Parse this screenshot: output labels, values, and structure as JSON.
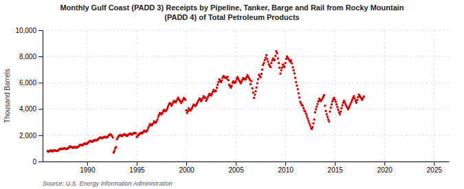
{
  "chart_data": {
    "type": "scatter",
    "title": "Monthly Gulf Coast (PADD 3) Receipts by Pipeline, Tanker, Barge and Rail from Rocky Mountain\n(PADD 4) of Total Petroleum Products",
    "ylabel": "Thousand Barrels",
    "source": "Source: U.S. Energy Information Administration",
    "color": "#cc0000",
    "marker": "square",
    "grid": true,
    "xlim": [
      1985.5,
      2026.5
    ],
    "ylim": [
      0,
      10000
    ],
    "xticks": [
      1990,
      1995,
      2000,
      2005,
      2010,
      2015,
      2020,
      2025
    ],
    "yticks": [
      0,
      {
        "value": 2000,
        "label": "2,000"
      },
      {
        "value": 4000,
        "label": "4,000"
      },
      {
        "value": 6000,
        "label": "6,000"
      },
      {
        "value": 8000,
        "label": "8,000"
      },
      {
        "value": 10000,
        "label": "10,000"
      }
    ],
    "x": [
      1986,
      1986.0833333333333,
      1986.1666666666667,
      1986.25,
      1986.3333333333333,
      1986.4166666666667,
      1986.5,
      1986.5833333333333,
      1986.6666666666667,
      1986.75,
      1986.8333333333333,
      1986.9166666666667,
      1987,
      1987.0833333333333,
      1987.1666666666667,
      1987.25,
      1987.3333333333333,
      1987.4166666666667,
      1987.5,
      1987.5833333333333,
      1987.6666666666667,
      1987.75,
      1987.8333333333333,
      1987.9166666666667,
      1988,
      1988.0833333333333,
      1988.1666666666667,
      1988.25,
      1988.3333333333333,
      1988.4166666666667,
      1988.5,
      1988.5833333333333,
      1988.6666666666667,
      1988.75,
      1988.8333333333333,
      1988.9166666666667,
      1989,
      1989.0833333333333,
      1989.1666666666667,
      1989.25,
      1989.3333333333333,
      1989.4166666666667,
      1989.5,
      1989.5833333333333,
      1989.6666666666667,
      1989.75,
      1989.8333333333333,
      1989.9166666666667,
      1990,
      1990.0833333333333,
      1990.1666666666667,
      1990.25,
      1990.3333333333333,
      1990.4166666666667,
      1990.5,
      1990.5833333333333,
      1990.6666666666667,
      1990.75,
      1990.8333333333333,
      1990.9166666666667,
      1991,
      1991.0833333333333,
      1991.1666666666667,
      1991.25,
      1991.3333333333333,
      1991.4166666666667,
      1991.5,
      1991.5833333333333,
      1991.6666666666667,
      1991.75,
      1991.8333333333333,
      1991.9166666666667,
      1992,
      1992.0833333333333,
      1992.1666666666667,
      1992.25,
      1992.3333333333333,
      1992.4166666666667,
      1992.5,
      1992.5833333333333,
      1992.6666666666667,
      1992.75,
      1992.8333333333333,
      1992.9166666666667,
      1993,
      1993.0833333333333,
      1993.1666666666667,
      1993.25,
      1993.3333333333333,
      1993.4166666666667,
      1993.5,
      1993.5833333333333,
      1993.6666666666667,
      1993.75,
      1993.8333333333333,
      1993.9166666666667,
      1994,
      1994.0833333333333,
      1994.1666666666667,
      1994.25,
      1994.3333333333333,
      1994.4166666666667,
      1994.5,
      1994.5833333333333,
      1994.6666666666667,
      1994.75,
      1994.8333333333333,
      1994.9166666666667,
      1995,
      1995.0833333333333,
      1995.1666666666667,
      1995.25,
      1995.3333333333333,
      1995.4166666666667,
      1995.5,
      1995.5833333333333,
      1995.6666666666667,
      1995.75,
      1995.8333333333333,
      1995.9166666666667,
      1996,
      1996.0833333333333,
      1996.1666666666667,
      1996.25,
      1996.3333333333333,
      1996.4166666666667,
      1996.5,
      1996.5833333333333,
      1996.6666666666667,
      1996.75,
      1996.8333333333333,
      1996.9166666666667,
      1997,
      1997.0833333333333,
      1997.1666666666667,
      1997.25,
      1997.3333333333333,
      1997.4166666666667,
      1997.5,
      1997.5833333333333,
      1997.6666666666667,
      1997.75,
      1997.8333333333333,
      1997.9166666666667,
      1998,
      1998.0833333333333,
      1998.1666666666667,
      1998.25,
      1998.3333333333333,
      1998.4166666666667,
      1998.5,
      1998.5833333333333,
      1998.6666666666667,
      1998.75,
      1998.8333333333333,
      1998.9166666666667,
      1999,
      1999.0833333333333,
      1999.1666666666667,
      1999.25,
      1999.3333333333333,
      1999.4166666666667,
      1999.5,
      1999.5833333333333,
      1999.6666666666667,
      1999.75,
      1999.8333333333333,
      1999.9166666666667,
      2000,
      2000.0833333333333,
      2000.1666666666667,
      2000.25,
      2000.3333333333333,
      2000.4166666666667,
      2000.5,
      2000.5833333333333,
      2000.6666666666667,
      2000.75,
      2000.8333333333333,
      2000.9166666666667,
      2001,
      2001.0833333333333,
      2001.1666666666667,
      2001.25,
      2001.3333333333333,
      2001.4166666666667,
      2001.5,
      2001.5833333333333,
      2001.6666666666667,
      2001.75,
      2001.8333333333333,
      2001.9166666666667,
      2002,
      2002.0833333333333,
      2002.1666666666667,
      2002.25,
      2002.3333333333333,
      2002.4166666666667,
      2002.5,
      2002.5833333333333,
      2002.6666666666667,
      2002.75,
      2002.8333333333333,
      2002.9166666666667,
      2003,
      2003.0833333333333,
      2003.1666666666667,
      2003.25,
      2003.3333333333333,
      2003.4166666666667,
      2003.5,
      2003.5833333333333,
      2003.6666666666667,
      2003.75,
      2003.8333333333333,
      2003.9166666666667,
      2004,
      2004.0833333333333,
      2004.1666666666667,
      2004.25,
      2004.3333333333333,
      2004.4166666666667,
      2004.5,
      2004.5833333333333,
      2004.6666666666667,
      2004.75,
      2004.8333333333333,
      2004.9166666666667,
      2005,
      2005.0833333333333,
      2005.1666666666667,
      2005.25,
      2005.3333333333333,
      2005.4166666666667,
      2005.5,
      2005.5833333333333,
      2005.6666666666667,
      2005.75,
      2005.8333333333333,
      2005.9166666666667,
      2006,
      2006.0833333333333,
      2006.1666666666667,
      2006.25,
      2006.3333333333333,
      2006.4166666666667,
      2006.5,
      2006.5833333333333,
      2006.6666666666667,
      2006.75,
      2006.8333333333333,
      2006.9166666666667,
      2007,
      2007.0833333333333,
      2007.1666666666667,
      2007.25,
      2007.3333333333333,
      2007.4166666666667,
      2007.5,
      2007.5833333333333,
      2007.6666666666667,
      2007.75,
      2007.8333333333333,
      2007.9166666666667,
      2008,
      2008.0833333333333,
      2008.1666666666667,
      2008.25,
      2008.3333333333333,
      2008.4166666666667,
      2008.5,
      2008.5833333333333,
      2008.6666666666667,
      2008.75,
      2008.8333333333333,
      2008.9166666666667,
      2009,
      2009.0833333333333,
      2009.1666666666667,
      2009.25,
      2009.3333333333333,
      2009.4166666666667,
      2009.5,
      2009.5833333333333,
      2009.6666666666667,
      2009.75,
      2009.8333333333333,
      2009.9166666666667,
      2010,
      2010.0833333333333,
      2010.1666666666667,
      2010.25,
      2010.3333333333333,
      2010.4166666666667,
      2010.5,
      2010.5833333333333,
      2010.6666666666667,
      2010.75,
      2010.8333333333333,
      2010.9166666666667,
      2011,
      2011.0833333333333,
      2011.1666666666667,
      2011.25,
      2011.3333333333333,
      2011.4166666666667,
      2011.5,
      2011.5833333333333,
      2011.6666666666667,
      2011.75,
      2011.8333333333333,
      2011.9166666666667,
      2012,
      2012.0833333333333,
      2012.1666666666667,
      2012.25,
      2012.3333333333333,
      2012.4166666666667,
      2012.5,
      2012.5833333333333,
      2012.6666666666667,
      2012.75,
      2012.8333333333333,
      2012.9166666666667,
      2013,
      2013.0833333333333,
      2013.1666666666667,
      2013.25,
      2013.3333333333333,
      2013.4166666666667,
      2013.5,
      2013.5833333333333,
      2013.6666666666667,
      2013.75,
      2013.8333333333333,
      2013.9166666666667,
      2014,
      2014.0833333333333,
      2014.1666666666667,
      2014.25,
      2014.3333333333333,
      2014.4166666666667,
      2014.5,
      2014.5833333333333,
      2014.6666666666667,
      2014.75,
      2014.8333333333333,
      2014.9166666666667,
      2015,
      2015.0833333333333,
      2015.1666666666667,
      2015.25,
      2015.3333333333333,
      2015.4166666666667,
      2015.5,
      2015.5833333333333,
      2015.6666666666667,
      2015.75,
      2015.8333333333333,
      2015.9166666666667,
      2016,
      2016.0833333333333,
      2016.1666666666667,
      2016.25,
      2016.3333333333333,
      2016.4166666666667,
      2016.5,
      2016.5833333333333,
      2016.6666666666667,
      2016.75,
      2016.8333333333333,
      2016.9166666666667,
      2017,
      2017.0833333333333,
      2017.1666666666667,
      2017.25,
      2017.3333333333333,
      2017.4166666666667,
      2017.5,
      2017.5833333333333,
      2017.6666666666667,
      2017.75,
      2017.8333333333333,
      2017.9166666666667
    ],
    "values": [
      800,
      750,
      780,
      820,
      850,
      800,
      780,
      820,
      860,
      840,
      810,
      800,
      820,
      860,
      900,
      950,
      980,
      960,
      940,
      980,
      1020,
      1000,
      970,
      950,
      980,
      1020,
      1080,
      1150,
      1130,
      1100,
      1060,
      1040,
      1090,
      1120,
      1080,
      1050,
      1070,
      1120,
      1180,
      1250,
      1280,
      1260,
      1220,
      1270,
      1330,
      1380,
      1350,
      1320,
      1380,
      1430,
      1490,
      1550,
      1570,
      1540,
      1500,
      1540,
      1590,
      1640,
      1610,
      1590,
      1640,
      1690,
      1750,
      1800,
      1840,
      1810,
      1770,
      1810,
      1850,
      1890,
      1860,
      1830,
      1840,
      1900,
      1980,
      2040,
      2080,
      2030,
      1960,
      1830,
      680,
      820,
      1000,
      1100,
      1700,
      1820,
      1920,
      1980,
      2030,
      1980,
      1930,
      1980,
      2030,
      2080,
      2040,
      2010,
      1940,
      1990,
      2050,
      2100,
      2140,
      2090,
      2040,
      2090,
      2140,
      2190,
      2170,
      2140,
      1860,
      1940,
      2010,
      2080,
      2140,
      2190,
      2130,
      2190,
      2250,
      2350,
      2310,
      2270,
      2310,
      2400,
      2550,
      2700,
      2850,
      2800,
      2750,
      2820,
      2900,
      3050,
      3000,
      2960,
      3050,
      3200,
      3400,
      3550,
      3700,
      3640,
      3590,
      3690,
      3810,
      3930,
      3880,
      3830,
      3900,
      4050,
      4200,
      4350,
      4450,
      4400,
      4250,
      4350,
      4480,
      4620,
      4570,
      4510,
      4600,
      4720,
      4860,
      4750,
      4650,
      4560,
      4460,
      4580,
      4700,
      4830,
      4770,
      4710,
      3900,
      3700,
      3850,
      4050,
      3950,
      3870,
      3970,
      4080,
      4210,
      4340,
      4290,
      4230,
      4300,
      4420,
      4560,
      4680,
      4800,
      4740,
      4590,
      4700,
      4830,
      4970,
      4910,
      4850,
      4630,
      4750,
      4900,
      5020,
      5150,
      5090,
      5030,
      5150,
      5300,
      5450,
      5390,
      5330,
      5400,
      5620,
      5850,
      6050,
      6250,
      6150,
      6050,
      6170,
      6380,
      6510,
      6450,
      6390,
      6410,
      6320,
      6450,
      6200,
      5850,
      5740,
      5630,
      5760,
      5990,
      6100,
      6040,
      5980,
      6100,
      6280,
      6420,
      6300,
      6180,
      6070,
      5960,
      6090,
      6230,
      6360,
      6300,
      6240,
      6300,
      6420,
      6580,
      6460,
      6340,
      6220,
      5890,
      6120,
      5580,
      5250,
      4840,
      5090,
      5350,
      5640,
      5960,
      6280,
      6600,
      6500,
      6420,
      6680,
      7000,
      7350,
      7500,
      7720,
      7900,
      8100,
      7800,
      7600,
      7400,
      7300,
      7200,
      7500,
      7700,
      7850,
      7780,
      7720,
      8050,
      8400,
      8250,
      7850,
      7500,
      7150,
      6700,
      6950,
      7150,
      7380,
      7290,
      7200,
      7500,
      7820,
      8000,
      7900,
      7800,
      7700,
      7580,
      7700,
      7480,
      7180,
      6950,
      6710,
      6380,
      6050,
      5780,
      5510,
      5190,
      4870,
      4550,
      4410,
      4290,
      4260,
      4060,
      3870,
      3820,
      3640,
      3460,
      3280,
      3100,
      2920,
      2740,
      2560,
      2480,
      2620,
      2900,
      3200,
      3750,
      3980,
      4180,
      4380,
      4580,
      4780,
      4700,
      4600,
      4700,
      4820,
      4940,
      5050,
      4250,
      3850,
      3600,
      3400,
      3200,
      3050,
      3800,
      4100,
      4350,
      4580,
      4750,
      4850,
      4700,
      4550,
      4350,
      4150,
      3950,
      3750,
      3600,
      3800,
      4050,
      4280,
      4480,
      4620,
      4500,
      4350,
      4220,
      4100,
      3980,
      4100,
      4250,
      4400,
      4550,
      4700,
      4850,
      4980,
      4800,
      4620,
      4480,
      4680,
      4900,
      5100,
      5000,
      4900,
      4800,
      4700,
      4820,
      4950
    ]
  }
}
